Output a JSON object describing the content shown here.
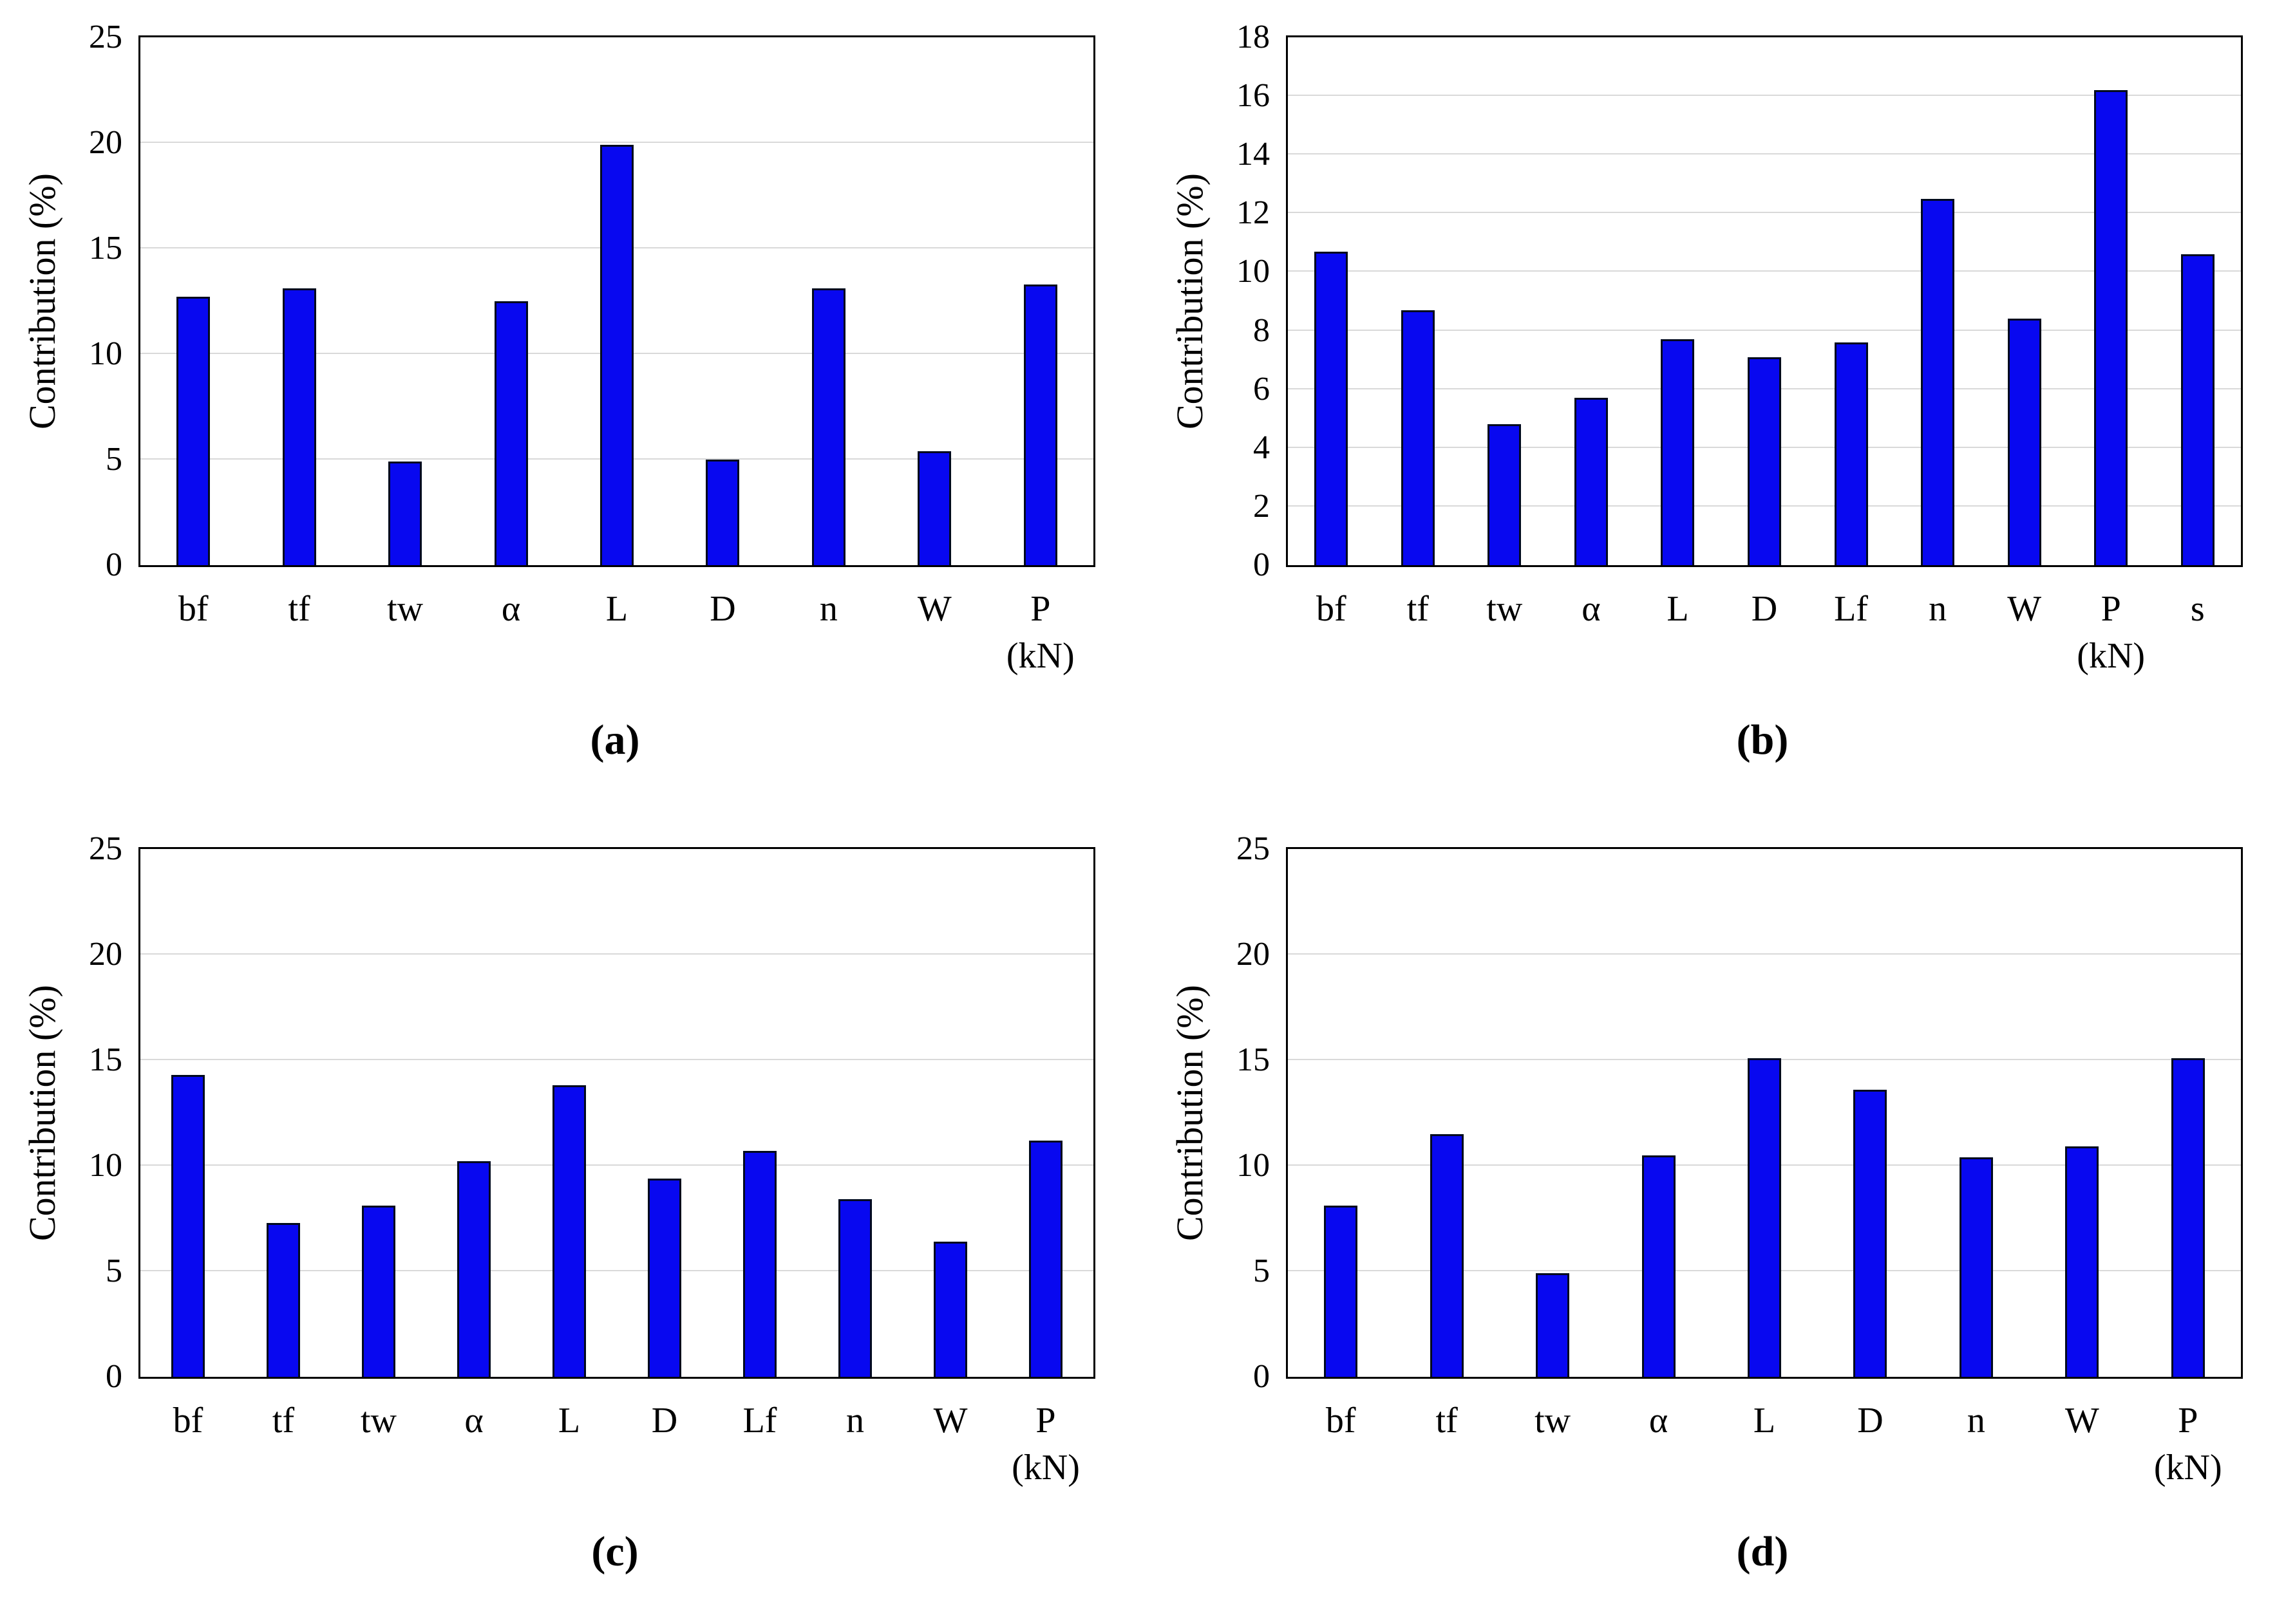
{
  "style": {
    "bar_fill": "#0808f0",
    "bar_border": "#000a1e",
    "gridline_color": "#d9d9d9",
    "axis_color": "#000000",
    "background": "#ffffff"
  },
  "chart_data": [
    {
      "id": "a",
      "type": "bar",
      "caption": "(a)",
      "ylabel": "Contribution (%)",
      "xlabel": "",
      "ylim": [
        0,
        25
      ],
      "yticks": [
        0,
        5,
        10,
        15,
        20,
        25
      ],
      "grid": true,
      "legend": false,
      "categories": [
        "bf",
        "tf",
        "tw",
        "α",
        "L",
        "D",
        "n",
        "W",
        "P\n(kN)"
      ],
      "values": [
        12.7,
        13.1,
        4.9,
        12.5,
        19.9,
        5.0,
        13.1,
        5.4,
        13.3
      ]
    },
    {
      "id": "b",
      "type": "bar",
      "caption": "(b)",
      "ylabel": "Contribution (%)",
      "xlabel": "",
      "ylim": [
        0,
        18
      ],
      "yticks": [
        0,
        2,
        4,
        6,
        8,
        10,
        12,
        14,
        16,
        18
      ],
      "grid": true,
      "legend": false,
      "categories": [
        "bf",
        "tf",
        "tw",
        "α",
        "L",
        "D",
        "Lf",
        "n",
        "W",
        "P\n(kN)",
        "s"
      ],
      "values": [
        10.7,
        8.7,
        4.8,
        5.7,
        7.7,
        7.1,
        7.6,
        12.5,
        8.4,
        16.2,
        10.6
      ]
    },
    {
      "id": "c",
      "type": "bar",
      "caption": "(c)",
      "ylabel": "Contribution (%)",
      "xlabel": "",
      "ylim": [
        0,
        25
      ],
      "yticks": [
        0,
        5,
        10,
        15,
        20,
        25
      ],
      "grid": true,
      "legend": false,
      "categories": [
        "bf",
        "tf",
        "tw",
        "α",
        "L",
        "D",
        "Lf",
        "n",
        "W",
        "P\n(kN)"
      ],
      "values": [
        14.3,
        7.3,
        8.1,
        10.2,
        13.8,
        9.4,
        10.7,
        8.4,
        6.4,
        11.2
      ]
    },
    {
      "id": "d",
      "type": "bar",
      "caption": "(d)",
      "ylabel": "Contribution (%)",
      "xlabel": "",
      "ylim": [
        0,
        25
      ],
      "yticks": [
        0,
        5,
        10,
        15,
        20,
        25
      ],
      "grid": true,
      "legend": false,
      "categories": [
        "bf",
        "tf",
        "tw",
        "α",
        "L",
        "D",
        "n",
        "W",
        "P\n(kN)"
      ],
      "values": [
        8.1,
        11.5,
        4.9,
        10.5,
        15.1,
        13.6,
        10.4,
        10.9,
        15.1
      ]
    }
  ]
}
